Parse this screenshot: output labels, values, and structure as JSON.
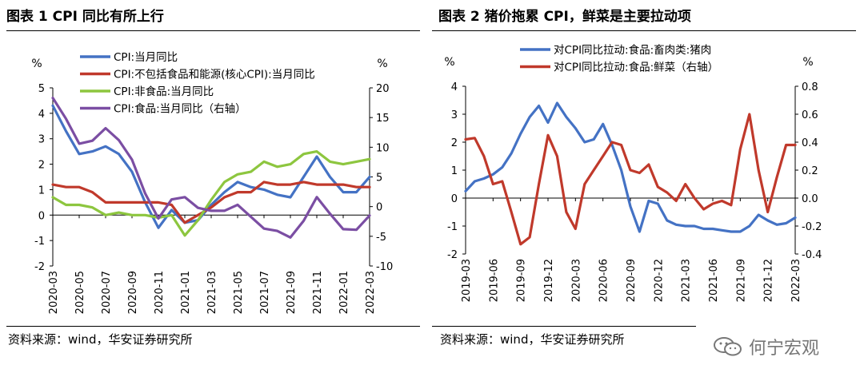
{
  "chart_data": [
    {
      "type": "line",
      "title": "图表 1 CPI 同比有所上行",
      "source": "资料来源：wind，华安证券研究所",
      "left_unit": "%",
      "right_unit": "%",
      "ylim_left": [
        -2,
        5
      ],
      "ylim_right": [
        -10,
        20
      ],
      "yticks_left": [
        "5",
        "4",
        "3",
        "2",
        "1",
        "0",
        "-1",
        "-2"
      ],
      "yticks_right": [
        "20",
        "15",
        "10",
        "5",
        "0",
        "-5",
        "-10"
      ],
      "x": [
        "2020-03",
        "2020-04",
        "2020-05",
        "2020-06",
        "2020-07",
        "2020-08",
        "2020-09",
        "2020-10",
        "2020-11",
        "2020-12",
        "2021-01",
        "2021-02",
        "2021-03",
        "2021-04",
        "2021-05",
        "2021-06",
        "2021-07",
        "2021-08",
        "2021-09",
        "2021-10",
        "2021-11",
        "2021-12",
        "2022-01",
        "2022-02",
        "2022-03"
      ],
      "xtick_labels": [
        "2020-03",
        "2020-05",
        "2020-07",
        "2020-09",
        "2020-11",
        "2021-01",
        "2021-03",
        "2021-05",
        "2021-07",
        "2021-09",
        "2021-11",
        "2022-01",
        "2022-03"
      ],
      "series": [
        {
          "name": "CPI:当月同比",
          "axis": "left",
          "color": "#4472C4",
          "values": [
            4.3,
            3.3,
            2.4,
            2.5,
            2.7,
            2.4,
            1.7,
            0.5,
            -0.5,
            0.2,
            -0.3,
            -0.2,
            0.4,
            0.9,
            1.3,
            1.1,
            1.0,
            0.8,
            0.7,
            1.5,
            2.3,
            1.5,
            0.9,
            0.9,
            1.5
          ]
        },
        {
          "name": "CPI:不包括食品和能源(核心CPI):当月同比",
          "axis": "left",
          "color": "#C0392B",
          "values": [
            1.2,
            1.1,
            1.1,
            0.9,
            0.5,
            0.5,
            0.5,
            0.5,
            0.5,
            0.4,
            -0.3,
            0.0,
            0.3,
            0.7,
            0.9,
            0.9,
            1.3,
            1.2,
            1.2,
            1.3,
            1.2,
            1.2,
            1.2,
            1.1,
            1.1
          ]
        },
        {
          "name": "CPI:非食品:当月同比",
          "axis": "left",
          "color": "#8DC63F",
          "values": [
            0.7,
            0.4,
            0.4,
            0.3,
            0.0,
            0.1,
            0.0,
            0.0,
            -0.1,
            0.0,
            -0.8,
            -0.2,
            0.6,
            1.3,
            1.6,
            1.7,
            2.1,
            1.9,
            2.0,
            2.4,
            2.5,
            2.1,
            2.0,
            2.1,
            2.2
          ]
        },
        {
          "name": "CPI:食品:当月同比（右轴）",
          "axis": "right",
          "color": "#7B4EA3",
          "values": [
            18.3,
            14.8,
            10.6,
            11.1,
            13.2,
            11.2,
            7.9,
            2.2,
            -2.0,
            1.2,
            1.6,
            -0.2,
            -0.7,
            -0.7,
            0.3,
            -1.7,
            -3.7,
            -4.1,
            -5.2,
            -2.4,
            1.6,
            -1.2,
            -3.8,
            -3.9,
            -1.5
          ]
        }
      ]
    },
    {
      "type": "line",
      "title": "图表 2 猪价拖累 CPI，鲜菜是主要拉动项",
      "source": "资料来源：wind，华安证券研究所",
      "left_unit": "%",
      "right_unit": "%",
      "ylim_left": [
        -2,
        4
      ],
      "ylim_right": [
        -0.4,
        0.8
      ],
      "yticks_left": [
        "4",
        "3",
        "2",
        "1",
        "0",
        "-1",
        "-2"
      ],
      "yticks_right": [
        "0.8",
        "0.6",
        "0.4",
        "0.2",
        "0.0",
        "-0.2",
        "-0.4"
      ],
      "x": [
        "2019-03",
        "2019-04",
        "2019-05",
        "2019-06",
        "2019-07",
        "2019-08",
        "2019-09",
        "2019-10",
        "2019-11",
        "2019-12",
        "2020-01",
        "2020-02",
        "2020-03",
        "2020-04",
        "2020-05",
        "2020-06",
        "2020-07",
        "2020-08",
        "2020-09",
        "2020-10",
        "2020-11",
        "2020-12",
        "2021-01",
        "2021-02",
        "2021-03",
        "2021-04",
        "2021-05",
        "2021-06",
        "2021-07",
        "2021-08",
        "2021-09",
        "2021-10",
        "2021-11",
        "2021-12",
        "2022-01",
        "2022-02",
        "2022-03"
      ],
      "xtick_labels": [
        "2019-03",
        "2019-06",
        "2019-09",
        "2019-12",
        "2020-03",
        "2020-06",
        "2020-09",
        "2020-12",
        "2021-03",
        "2021-06",
        "2021-09",
        "2021-12",
        "2022-03"
      ],
      "series": [
        {
          "name": "对CPI同比拉动:食品:畜肉类:猪肉",
          "axis": "left",
          "color": "#4472C4",
          "values": [
            0.25,
            0.6,
            0.7,
            0.85,
            1.1,
            1.6,
            2.3,
            2.9,
            3.3,
            2.7,
            3.4,
            2.9,
            2.5,
            2.0,
            2.1,
            2.65,
            1.9,
            1.0,
            -0.3,
            -1.2,
            -0.1,
            -0.2,
            -0.8,
            -0.95,
            -1.0,
            -1.0,
            -1.1,
            -1.1,
            -1.15,
            -1.2,
            -1.2,
            -1.0,
            -0.6,
            -0.8,
            -0.95,
            -0.9,
            -0.7
          ]
        },
        {
          "name": "对CPI同比拉动:食品:鲜菜（右轴）",
          "axis": "right",
          "color": "#C0392B",
          "values": [
            0.42,
            0.43,
            0.3,
            0.1,
            0.12,
            -0.1,
            -0.33,
            -0.28,
            0.1,
            0.45,
            0.3,
            -0.1,
            -0.22,
            0.1,
            0.2,
            0.3,
            0.4,
            0.38,
            0.2,
            0.18,
            0.24,
            0.08,
            0.04,
            -0.02,
            0.1,
            0.0,
            -0.08,
            -0.04,
            -0.02,
            -0.05,
            0.35,
            0.6,
            0.2,
            -0.1,
            0.15,
            0.38,
            0.38
          ]
        }
      ]
    }
  ],
  "watermark": "何宁宏观"
}
